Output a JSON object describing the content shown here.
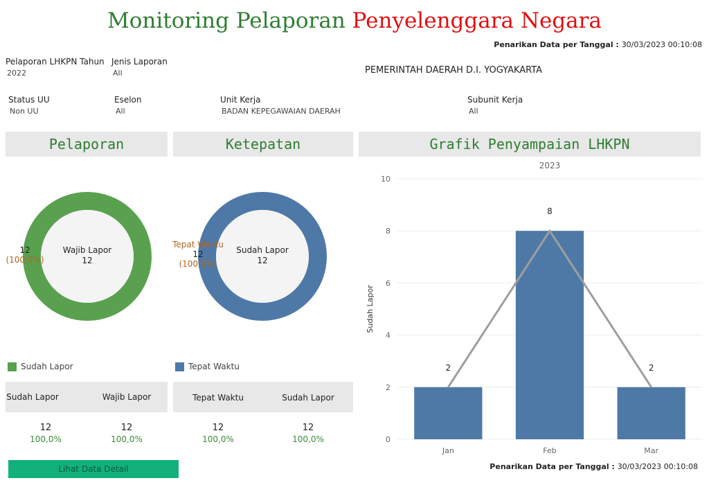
{
  "title": {
    "part1": "Monitoring Pelaporan",
    "part2": "Penyelenggara Negara"
  },
  "timestamp": {
    "label": "Penarikan Data per Tanggal :",
    "value": "30/03/2023 00:10:08"
  },
  "filters": {
    "tahun": {
      "label": "Pelaporan LHKPN Tahun",
      "value": "2022"
    },
    "jenis": {
      "label": "Jenis Laporan",
      "value": "All"
    },
    "status": {
      "label": "Status UU",
      "value": "Non UU"
    },
    "eselon": {
      "label": "Eselon",
      "value": "All"
    },
    "unit": {
      "label": "Unit Kerja",
      "value": "BADAN KEPEGAWAIAN DAERAH"
    },
    "subunit": {
      "label": "Subunit Kerja",
      "value": "All"
    }
  },
  "instansi": "PEMERINTAH DAERAH D.I. YOGYAKARTA",
  "pelaporan": {
    "header": "Pelaporan",
    "center_label": "Wajib Lapor",
    "center_value": "12",
    "ann_value": "12",
    "ann_pct": "(100,0%)",
    "legend": "Sudah Lapor",
    "color": "#59a14f",
    "fill_fraction": 1.0,
    "table": {
      "col1": "Sudah Lapor",
      "col2": "Wajib Lapor",
      "v1": "12",
      "p1": "100,0%",
      "v2": "12",
      "p2": "100,0%"
    }
  },
  "ketepatan": {
    "header": "Ketepatan",
    "center_label": "Sudah Lapor",
    "center_value": "12",
    "ann_label": "Tepat Waktu",
    "ann_value": "12",
    "ann_pct": "(100,0%)",
    "legend": "Tepat Waktu",
    "color": "#4e79a7",
    "fill_fraction": 1.0,
    "table": {
      "col1": "Tepat Waktu",
      "col2": "Sudah Lapor",
      "v1": "12",
      "p1": "100,0%",
      "v2": "12",
      "p2": "100,0%"
    }
  },
  "button_label": "Lihat Data Detail",
  "grafik": {
    "header": "Grafik Penyampaian LHKPN"
  },
  "chart_data": {
    "type": "bar",
    "title": "2023",
    "ylabel": "Sudah Lapor",
    "categories": [
      "Jan",
      "Feb",
      "Mar"
    ],
    "series": [
      {
        "values": [
          2,
          8,
          2
        ]
      }
    ],
    "line_overlay": [
      2,
      8,
      2
    ],
    "ylim": [
      0,
      10
    ],
    "yticks": [
      0,
      2,
      4,
      6,
      8,
      10
    ],
    "bar_color": "#4e79a7",
    "line_color": "#9e9e9e"
  }
}
